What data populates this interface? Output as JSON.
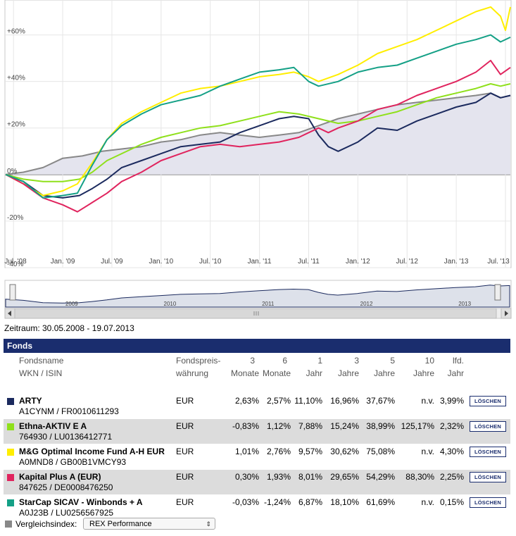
{
  "colors": {
    "arty": "#1b2a5e",
    "ethna": "#8fe01b",
    "mg": "#ffee00",
    "kapital": "#e0245e",
    "starcap": "#14a086",
    "rex": "#888888",
    "header_bg": "#1a2d6e"
  },
  "chart_data": {
    "type": "line",
    "title": "",
    "xlabel": "",
    "ylabel": "",
    "x": [
      "Jul. '08",
      "Jan. '09",
      "Jul. '09",
      "Jan. '10",
      "Jul. '10",
      "Jan. '11",
      "Jul. '11",
      "Jan. '12",
      "Jul. '12",
      "Jan. '13",
      "Jul. '13"
    ],
    "ylim": [
      -40,
      75
    ],
    "y_ticks": [
      "+60%",
      "+40%",
      "+20%",
      "0%",
      "-20%",
      "-40%"
    ],
    "y_tick_values": [
      60,
      40,
      20,
      0,
      -20,
      -40
    ],
    "series": [
      {
        "name": "ARTY",
        "color_key": "arty",
        "points": [
          [
            2008.42,
            0
          ],
          [
            2008.6,
            -3
          ],
          [
            2008.8,
            -9
          ],
          [
            2009.0,
            -10
          ],
          [
            2009.17,
            -9
          ],
          [
            2009.3,
            -6
          ],
          [
            2009.45,
            -2
          ],
          [
            2009.6,
            3
          ],
          [
            2009.8,
            6
          ],
          [
            2010.0,
            9
          ],
          [
            2010.2,
            12
          ],
          [
            2010.4,
            13
          ],
          [
            2010.6,
            14
          ],
          [
            2010.8,
            18
          ],
          [
            2011.0,
            21
          ],
          [
            2011.2,
            24
          ],
          [
            2011.35,
            25
          ],
          [
            2011.5,
            24
          ],
          [
            2011.6,
            17
          ],
          [
            2011.7,
            12
          ],
          [
            2011.8,
            10
          ],
          [
            2012.0,
            14
          ],
          [
            2012.2,
            20
          ],
          [
            2012.4,
            19
          ],
          [
            2012.6,
            23
          ],
          [
            2012.8,
            26
          ],
          [
            2013.0,
            29
          ],
          [
            2013.2,
            31
          ],
          [
            2013.35,
            35
          ],
          [
            2013.45,
            33
          ],
          [
            2013.55,
            34
          ]
        ]
      },
      {
        "name": "Ethna-AKTIV E A",
        "color_key": "ethna",
        "points": [
          [
            2008.42,
            0
          ],
          [
            2008.6,
            -2
          ],
          [
            2008.8,
            -3
          ],
          [
            2009.0,
            -3
          ],
          [
            2009.17,
            -2
          ],
          [
            2009.3,
            1
          ],
          [
            2009.45,
            6
          ],
          [
            2009.6,
            9
          ],
          [
            2009.8,
            13
          ],
          [
            2010.0,
            16
          ],
          [
            2010.2,
            18
          ],
          [
            2010.4,
            20
          ],
          [
            2010.6,
            21
          ],
          [
            2010.8,
            23
          ],
          [
            2011.0,
            25
          ],
          [
            2011.2,
            27
          ],
          [
            2011.4,
            26
          ],
          [
            2011.6,
            24
          ],
          [
            2011.8,
            22
          ],
          [
            2012.0,
            23
          ],
          [
            2012.2,
            25
          ],
          [
            2012.4,
            27
          ],
          [
            2012.6,
            30
          ],
          [
            2012.8,
            33
          ],
          [
            2013.0,
            35
          ],
          [
            2013.2,
            37
          ],
          [
            2013.35,
            39
          ],
          [
            2013.45,
            38
          ],
          [
            2013.55,
            39
          ]
        ]
      },
      {
        "name": "M&G Optimal Income Fund A-H EUR",
        "color_key": "mg",
        "points": [
          [
            2008.42,
            0
          ],
          [
            2008.6,
            -4
          ],
          [
            2008.8,
            -9
          ],
          [
            2009.0,
            -7
          ],
          [
            2009.15,
            -4
          ],
          [
            2009.3,
            5
          ],
          [
            2009.45,
            15
          ],
          [
            2009.6,
            22
          ],
          [
            2009.8,
            27
          ],
          [
            2010.0,
            31
          ],
          [
            2010.2,
            35
          ],
          [
            2010.4,
            37
          ],
          [
            2010.6,
            38
          ],
          [
            2010.8,
            40
          ],
          [
            2011.0,
            42
          ],
          [
            2011.2,
            43
          ],
          [
            2011.35,
            44
          ],
          [
            2011.5,
            42
          ],
          [
            2011.6,
            40
          ],
          [
            2011.8,
            43
          ],
          [
            2012.0,
            47
          ],
          [
            2012.2,
            52
          ],
          [
            2012.4,
            55
          ],
          [
            2012.6,
            58
          ],
          [
            2012.8,
            62
          ],
          [
            2013.0,
            66
          ],
          [
            2013.2,
            70
          ],
          [
            2013.35,
            72
          ],
          [
            2013.45,
            68
          ],
          [
            2013.5,
            62
          ],
          [
            2013.55,
            72
          ]
        ]
      },
      {
        "name": "Kapital Plus A (EUR)",
        "color_key": "kapital",
        "points": [
          [
            2008.42,
            0
          ],
          [
            2008.6,
            -4
          ],
          [
            2008.8,
            -10
          ],
          [
            2009.0,
            -13
          ],
          [
            2009.15,
            -16
          ],
          [
            2009.3,
            -12
          ],
          [
            2009.45,
            -8
          ],
          [
            2009.6,
            -3
          ],
          [
            2009.8,
            1
          ],
          [
            2010.0,
            6
          ],
          [
            2010.2,
            9
          ],
          [
            2010.4,
            12
          ],
          [
            2010.6,
            13
          ],
          [
            2010.8,
            12
          ],
          [
            2011.0,
            13
          ],
          [
            2011.2,
            14
          ],
          [
            2011.4,
            16
          ],
          [
            2011.5,
            18
          ],
          [
            2011.6,
            20
          ],
          [
            2011.7,
            18
          ],
          [
            2011.8,
            20
          ],
          [
            2012.0,
            23
          ],
          [
            2012.2,
            28
          ],
          [
            2012.4,
            30
          ],
          [
            2012.6,
            34
          ],
          [
            2012.8,
            37
          ],
          [
            2013.0,
            40
          ],
          [
            2013.2,
            44
          ],
          [
            2013.35,
            49
          ],
          [
            2013.45,
            43
          ],
          [
            2013.55,
            46
          ]
        ]
      },
      {
        "name": "StarCap SICAV - Winbonds + A",
        "color_key": "starcap",
        "points": [
          [
            2008.42,
            0
          ],
          [
            2008.6,
            -3
          ],
          [
            2008.8,
            -10
          ],
          [
            2009.0,
            -9
          ],
          [
            2009.15,
            -8
          ],
          [
            2009.3,
            4
          ],
          [
            2009.45,
            15
          ],
          [
            2009.6,
            21
          ],
          [
            2009.8,
            26
          ],
          [
            2010.0,
            30
          ],
          [
            2010.2,
            32
          ],
          [
            2010.4,
            34
          ],
          [
            2010.6,
            38
          ],
          [
            2010.8,
            41
          ],
          [
            2011.0,
            44
          ],
          [
            2011.2,
            45
          ],
          [
            2011.35,
            46
          ],
          [
            2011.5,
            40
          ],
          [
            2011.6,
            38
          ],
          [
            2011.8,
            40
          ],
          [
            2012.0,
            44
          ],
          [
            2012.2,
            46
          ],
          [
            2012.4,
            47
          ],
          [
            2012.6,
            50
          ],
          [
            2012.8,
            53
          ],
          [
            2013.0,
            56
          ],
          [
            2013.2,
            58
          ],
          [
            2013.35,
            60
          ],
          [
            2013.45,
            57
          ],
          [
            2013.55,
            59
          ]
        ]
      },
      {
        "name": "REX Performance",
        "color_key": "rex",
        "area": true,
        "points": [
          [
            2008.42,
            0
          ],
          [
            2008.6,
            1
          ],
          [
            2008.8,
            3
          ],
          [
            2009.0,
            7
          ],
          [
            2009.2,
            8
          ],
          [
            2009.4,
            10
          ],
          [
            2009.6,
            11
          ],
          [
            2009.8,
            12
          ],
          [
            2010.0,
            14
          ],
          [
            2010.2,
            15
          ],
          [
            2010.4,
            17
          ],
          [
            2010.6,
            18
          ],
          [
            2010.8,
            17
          ],
          [
            2011.0,
            16
          ],
          [
            2011.2,
            17
          ],
          [
            2011.4,
            18
          ],
          [
            2011.6,
            21
          ],
          [
            2011.8,
            24
          ],
          [
            2012.0,
            26
          ],
          [
            2012.2,
            28
          ],
          [
            2012.4,
            30
          ],
          [
            2012.6,
            31
          ],
          [
            2012.8,
            32
          ],
          [
            2013.0,
            33
          ],
          [
            2013.2,
            34
          ],
          [
            2013.35,
            35
          ],
          [
            2013.45,
            33
          ],
          [
            2013.55,
            34
          ]
        ]
      }
    ],
    "navigator_labels": [
      "2009",
      "2010",
      "2011",
      "2012",
      "2013"
    ]
  },
  "period": "Zeitraum: 30.05.2008 - 19.07.2013",
  "table": {
    "title": "Fonds",
    "headers": {
      "name1": "Fondsname",
      "name2": "WKN / ISIN",
      "cur1": "Fondspreis-",
      "cur2": "währung",
      "m3a": "3",
      "m3b": "Monate",
      "m6a": "6",
      "m6b": "Monate",
      "y1a": "1",
      "y1b": "Jahr",
      "y3a": "3",
      "y3b": "Jahre",
      "y5a": "5",
      "y5b": "Jahre",
      "y10a": "10",
      "y10b": "Jahre",
      "ytda": "lfd.",
      "ytdb": "Jahr"
    },
    "rows": [
      {
        "name": "ARTY",
        "id": "A1CYNM / FR0010611293",
        "currency": "EUR",
        "m3": "2,63%",
        "m6": "2,57%",
        "y1": "11,10%",
        "y3": "16,96%",
        "y5": "37,67%",
        "y10": "n.v.",
        "ytd": "3,99%",
        "action": "LÖSCHEN"
      },
      {
        "name": "Ethna-AKTIV E A",
        "id": "764930 / LU0136412771",
        "currency": "EUR",
        "m3": "-0,83%",
        "m6": "1,12%",
        "y1": "7,88%",
        "y3": "15,24%",
        "y5": "38,99%",
        "y10": "125,17%",
        "ytd": "2,32%",
        "action": "LÖSCHEN"
      },
      {
        "name": "M&G Optimal Income Fund A-H EUR",
        "id": "A0MND8 / GB00B1VMCY93",
        "currency": "EUR",
        "m3": "1,01%",
        "m6": "2,76%",
        "y1": "9,57%",
        "y3": "30,62%",
        "y5": "75,08%",
        "y10": "n.v.",
        "ytd": "4,30%",
        "action": "LÖSCHEN"
      },
      {
        "name": "Kapital Plus A (EUR)",
        "id": "847625 / DE0008476250",
        "currency": "EUR",
        "m3": "0,30%",
        "m6": "1,93%",
        "y1": "8,01%",
        "y3": "29,65%",
        "y5": "54,29%",
        "y10": "88,30%",
        "ytd": "2,25%",
        "action": "LÖSCHEN"
      },
      {
        "name": "StarCap SICAV - Winbonds + A",
        "id": "A0J23B / LU0256567925",
        "currency": "EUR",
        "m3": "-0,03%",
        "m6": "-1,24%",
        "y1": "6,87%",
        "y3": "18,10%",
        "y5": "61,69%",
        "y10": "n.v.",
        "ytd": "0,15%",
        "action": "LÖSCHEN"
      }
    ]
  },
  "comparison": {
    "label": "Vergleichsindex:",
    "selected": "REX Performance",
    "arrow": "⇕"
  }
}
